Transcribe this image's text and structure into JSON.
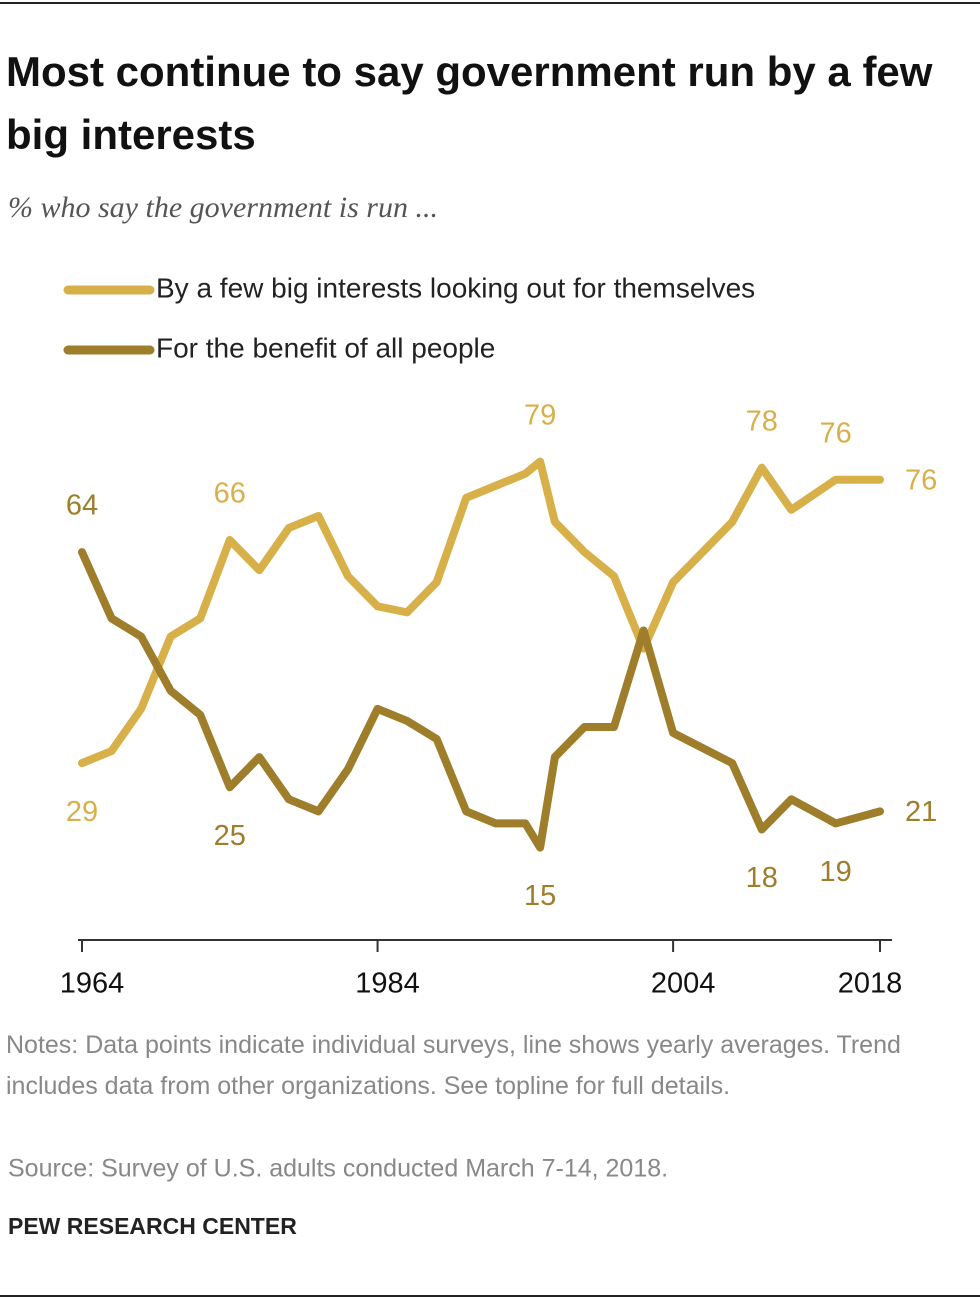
{
  "chart_data": {
    "type": "line",
    "title": "Most continue to say government run by a few big interests",
    "subtitle": "% who say the government is run ...",
    "x": [
      1964,
      1966,
      1968,
      1970,
      1972,
      1974,
      1976,
      1978,
      1980,
      1982,
      1984,
      1986,
      1988,
      1990,
      1992,
      1994,
      1995,
      1996,
      1998,
      2000,
      2002,
      2004,
      2008,
      2010,
      2012,
      2015,
      2018
    ],
    "series": [
      {
        "name": "By a few big interests looking out for themselves",
        "color": "#d8b04a",
        "values": [
          29,
          31,
          38,
          50,
          53,
          66,
          61,
          68,
          70,
          60,
          55,
          54,
          59,
          73,
          75,
          77,
          79,
          69,
          64,
          60,
          48,
          59,
          69,
          78,
          71,
          76,
          76
        ],
        "labeled": [
          0,
          5,
          16,
          23,
          25,
          26
        ]
      },
      {
        "name": "For the benefit of all people",
        "color": "#9e7d2b",
        "values": [
          64,
          53,
          50,
          41,
          37,
          25,
          30,
          23,
          21,
          28,
          38,
          36,
          33,
          21,
          19,
          19,
          15,
          30,
          35,
          35,
          51,
          34,
          29,
          18,
          23,
          19,
          21
        ],
        "labeled": [
          0,
          5,
          16,
          23,
          25,
          26
        ]
      }
    ],
    "xlim": [
      1964,
      2018
    ],
    "xticks": [
      1964,
      1984,
      2004,
      2018
    ],
    "ylim": [
      0,
      100
    ],
    "notes": "Notes: Data points indicate individual surveys, line shows yearly averages. Trend includes data from other organizations. See topline for full details.",
    "source": "Source: Survey of U.S. adults conducted March 7-14, 2018.",
    "footer": "PEW RESEARCH CENTER"
  }
}
